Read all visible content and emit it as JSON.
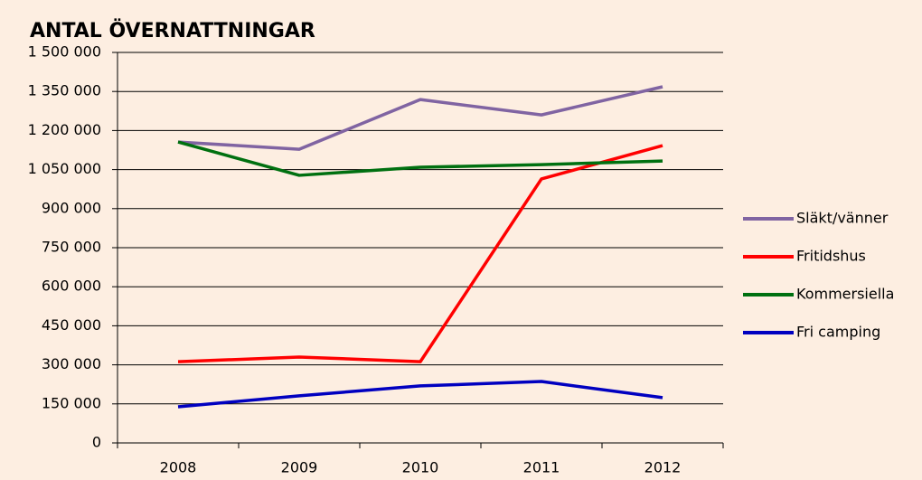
{
  "chart_data": {
    "type": "line",
    "title": "ANTAL ÖVERNATTNINGAR",
    "categories": [
      "2008",
      "2009",
      "2010",
      "2011",
      "2012"
    ],
    "series": [
      {
        "name": "Släkt/vänner",
        "color": "#8064a2",
        "values": [
          1156000,
          1128000,
          1319000,
          1260000,
          1368000
        ]
      },
      {
        "name": "Fritidshus",
        "color": "#ff0000",
        "values": [
          312000,
          330000,
          312000,
          1014000,
          1142000
        ]
      },
      {
        "name": "Kommersiella",
        "color": "#007010",
        "values": [
          1156000,
          1028000,
          1059000,
          1069000,
          1083000
        ]
      },
      {
        "name": "Fri camping",
        "color": "#0000c0",
        "values": [
          139000,
          181000,
          219000,
          236000,
          174000
        ]
      }
    ],
    "ylim": [
      0,
      1500000
    ],
    "yticks": [
      0,
      {
        "value": 150000,
        "label": "150 000"
      },
      {
        "value": 300000,
        "label": "300 000"
      },
      {
        "value": 450000,
        "label": "450 000"
      },
      {
        "value": 600000,
        "label": "600 000"
      },
      {
        "value": 750000,
        "label": "750 000"
      },
      {
        "value": 900000,
        "label": "900 000"
      },
      {
        "value": 1050000,
        "label": "1 050 000"
      },
      {
        "value": 1200000,
        "label": "1 200 000"
      },
      {
        "value": 1350000,
        "label": "1 350 000"
      },
      {
        "value": 1500000,
        "label": "1 500 000"
      }
    ],
    "grid": true,
    "legend": "right"
  }
}
